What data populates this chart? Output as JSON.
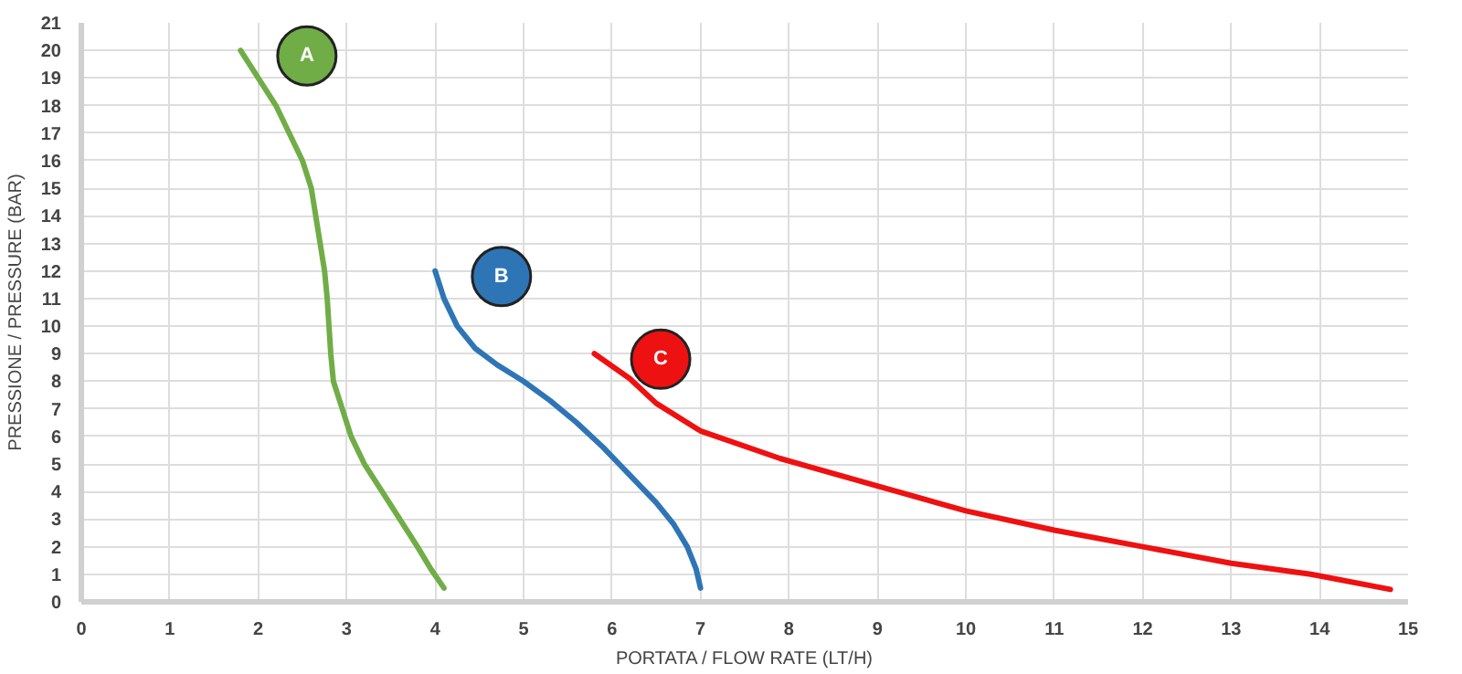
{
  "chart_data": {
    "type": "line",
    "xlabel": "PORTATA / FLOW RATE (LT/H)",
    "ylabel": "PRESSIONE / PRESSURE (BAR)",
    "xlim": [
      0,
      15
    ],
    "ylim": [
      0,
      21
    ],
    "xticks": [
      0,
      1,
      2,
      3,
      4,
      5,
      6,
      7,
      8,
      9,
      10,
      11,
      12,
      13,
      14,
      15
    ],
    "yticks": [
      0,
      1,
      2,
      3,
      4,
      5,
      6,
      7,
      8,
      9,
      10,
      11,
      12,
      13,
      14,
      15,
      16,
      17,
      18,
      19,
      20,
      21
    ],
    "grid": true,
    "line_style": "solid",
    "series": [
      {
        "name": "A",
        "color": "#70ad47",
        "x": [
          1.8,
          2.0,
          2.2,
          2.35,
          2.5,
          2.6,
          2.65,
          2.7,
          2.75,
          2.78,
          2.8,
          2.82,
          2.85,
          2.95,
          3.05,
          3.2,
          3.4,
          3.6,
          3.8,
          3.95,
          4.1
        ],
        "values": [
          20,
          19,
          18,
          17,
          16,
          15,
          14,
          13,
          12,
          11,
          10,
          9,
          8,
          7,
          6,
          5,
          4,
          3,
          2,
          1.2,
          0.5
        ]
      },
      {
        "name": "B",
        "color": "#2e75b6",
        "x": [
          4.0,
          4.1,
          4.25,
          4.45,
          4.7,
          5.0,
          5.3,
          5.6,
          5.9,
          6.2,
          6.5,
          6.7,
          6.85,
          6.95,
          7.0
        ],
        "values": [
          12,
          11,
          10,
          9.2,
          8.6,
          8.0,
          7.3,
          6.5,
          5.6,
          4.6,
          3.6,
          2.8,
          2.0,
          1.2,
          0.5
        ]
      },
      {
        "name": "C",
        "color": "#ee1111",
        "x": [
          5.8,
          6.2,
          6.5,
          7.0,
          7.9,
          9.0,
          10.0,
          11.0,
          12.0,
          13.0,
          13.9,
          14.8
        ],
        "values": [
          9.0,
          8.1,
          7.2,
          6.2,
          5.2,
          4.2,
          3.3,
          2.6,
          2.0,
          1.4,
          1.0,
          0.45
        ]
      }
    ]
  }
}
